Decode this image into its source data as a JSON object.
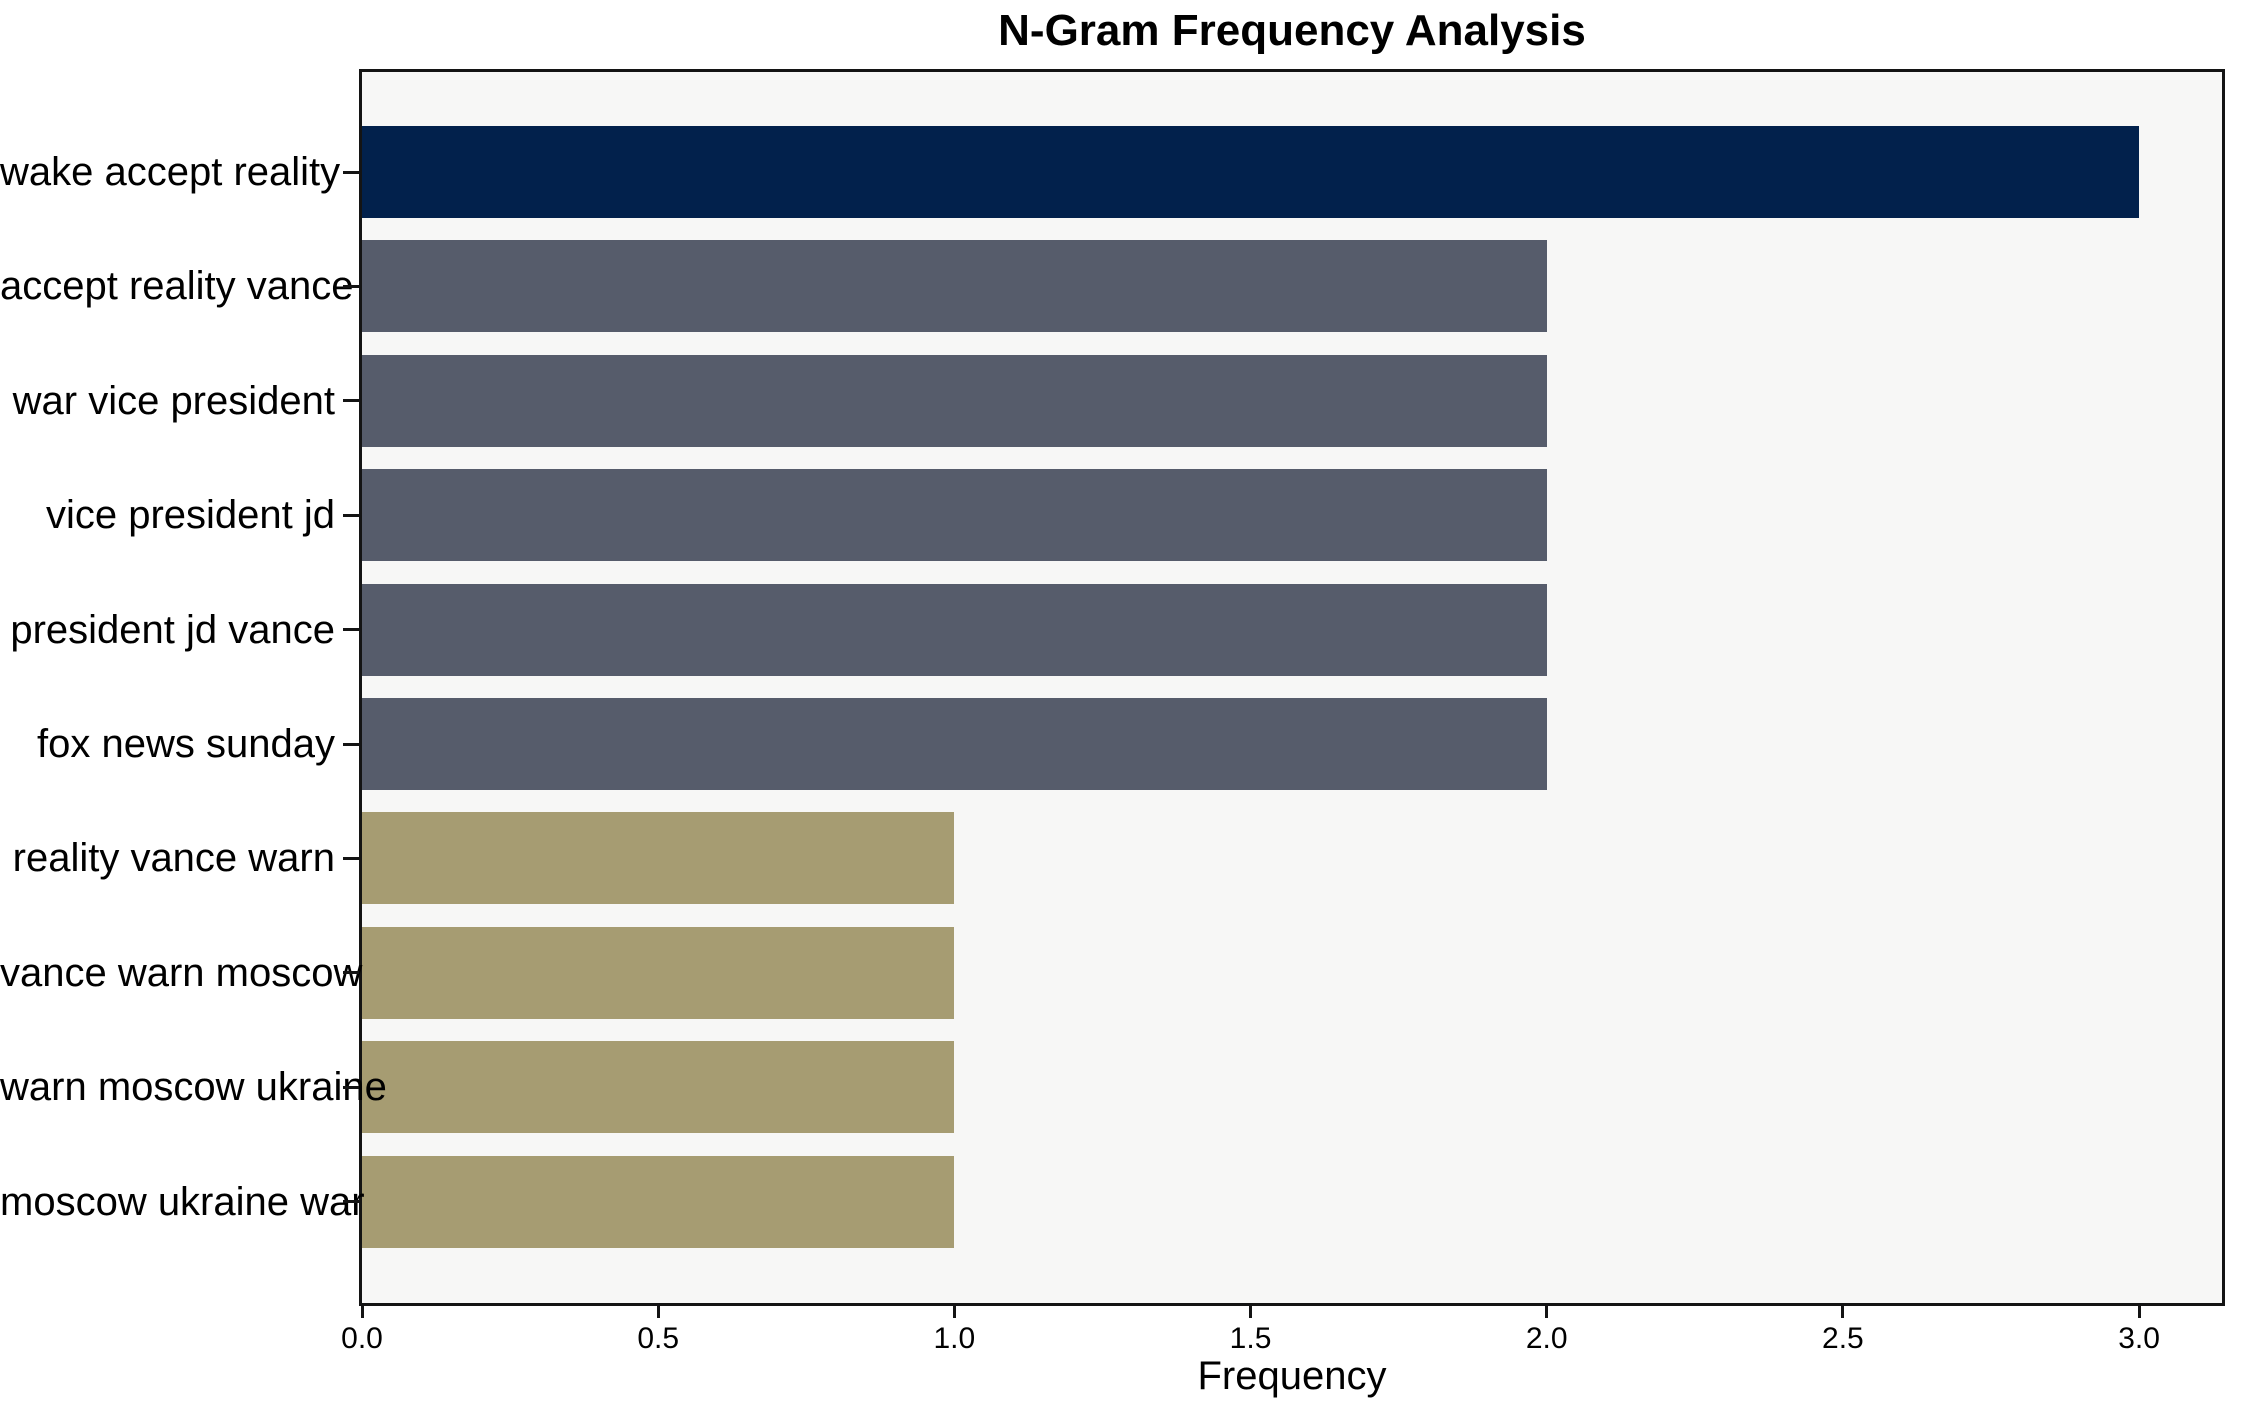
{
  "chart_data": {
    "type": "bar",
    "orientation": "horizontal",
    "title": "N-Gram Frequency Analysis",
    "xlabel": "Frequency",
    "ylabel": "",
    "categories": [
      "wake accept reality",
      "accept reality vance",
      "war vice president",
      "vice president jd",
      "president jd vance",
      "fox news sunday",
      "reality vance warn",
      "vance warn moscow",
      "warn moscow ukraine",
      "moscow ukraine war"
    ],
    "values": [
      3,
      2,
      2,
      2,
      2,
      2,
      1,
      1,
      1,
      1
    ],
    "bar_colors": [
      "#02214c",
      "#565c6b",
      "#565c6b",
      "#565c6b",
      "#565c6b",
      "#565c6b",
      "#a69c72",
      "#a69c72",
      "#a69c72",
      "#a69c72"
    ],
    "x_ticks": [
      {
        "value": 0.0,
        "label": "0.0"
      },
      {
        "value": 0.5,
        "label": "0.5"
      },
      {
        "value": 1.0,
        "label": "1.0"
      },
      {
        "value": 1.5,
        "label": "1.5"
      },
      {
        "value": 2.0,
        "label": "2.0"
      },
      {
        "value": 2.5,
        "label": "2.5"
      },
      {
        "value": 3.0,
        "label": "3.0"
      }
    ],
    "xlim": [
      0,
      3.14
    ],
    "grid": false,
    "legend": null,
    "colors": {
      "figure_background": "#ffffff",
      "plot_background": "#f7f7f6",
      "spine": "#141414",
      "text": "#000000"
    }
  }
}
